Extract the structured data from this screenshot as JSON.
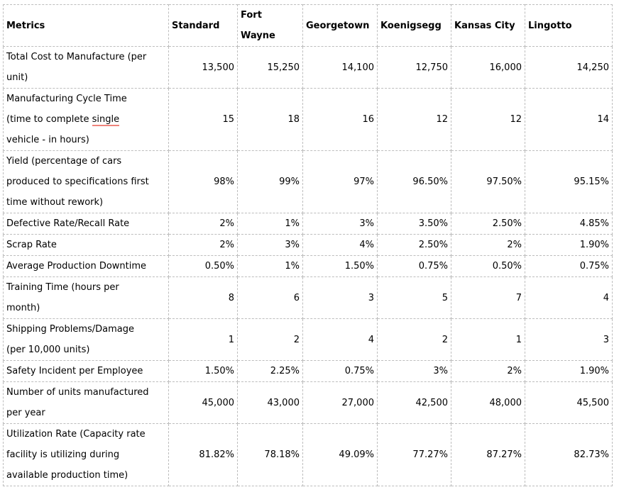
{
  "table": {
    "header": [
      "Metrics",
      "Standard",
      "Fort\nWayne",
      "Georgetown",
      "Koenigsegg",
      "Kansas City",
      "Lingotto"
    ],
    "rows": [
      {
        "metric": "Total Cost to Manufacture (per\nunit)",
        "values": [
          "13,500",
          "15,250",
          "14,100",
          "12,750",
          "16,000",
          "14,250"
        ]
      },
      {
        "metric": "Manufacturing Cycle Time\n(time to complete single\nvehicle - in hours)",
        "underline_word": "single",
        "values": [
          "15",
          "18",
          "16",
          "12",
          "12",
          "14"
        ]
      },
      {
        "metric": "Yield (percentage of cars\nproduced to specifications first\ntime without rework)",
        "values": [
          "98%",
          "99%",
          "97%",
          "96.50%",
          "97.50%",
          "95.15%"
        ]
      },
      {
        "metric": "Defective Rate/Recall Rate",
        "values": [
          "2%",
          "1%",
          "3%",
          "3.50%",
          "2.50%",
          "4.85%"
        ]
      },
      {
        "metric": "Scrap Rate",
        "values": [
          "2%",
          "3%",
          "4%",
          "2.50%",
          "2%",
          "1.90%"
        ]
      },
      {
        "metric": "Average Production Downtime",
        "values": [
          "0.50%",
          "1%",
          "1.50%",
          "0.75%",
          "0.50%",
          "0.75%"
        ]
      },
      {
        "metric": "Training Time (hours per\nmonth)",
        "values": [
          "8",
          "6",
          "3",
          "5",
          "7",
          "4"
        ]
      },
      {
        "metric": "Shipping Problems/Damage\n(per 10,000 units)",
        "values": [
          "1",
          "2",
          "4",
          "2",
          "1",
          "3"
        ]
      },
      {
        "metric": "Safety Incident per Employee",
        "values": [
          "1.50%",
          "2.25%",
          "0.75%",
          "3%",
          "2%",
          "1.90%"
        ]
      },
      {
        "metric": "Number of units manufactured\nper year",
        "values": [
          "45,000",
          "43,000",
          "27,000",
          "42,500",
          "48,000",
          "45,500"
        ]
      },
      {
        "metric": "Utilization Rate (Capacity rate\nfacility is utilizing during\navailable production time)",
        "values": [
          "81.82%",
          "78.18%",
          "49.09%",
          "77.27%",
          "87.27%",
          "82.73%"
        ]
      }
    ]
  },
  "colors": {
    "border": "#bdbdbd",
    "text": "#000000",
    "spellcheck_underline": "#ef837b"
  }
}
